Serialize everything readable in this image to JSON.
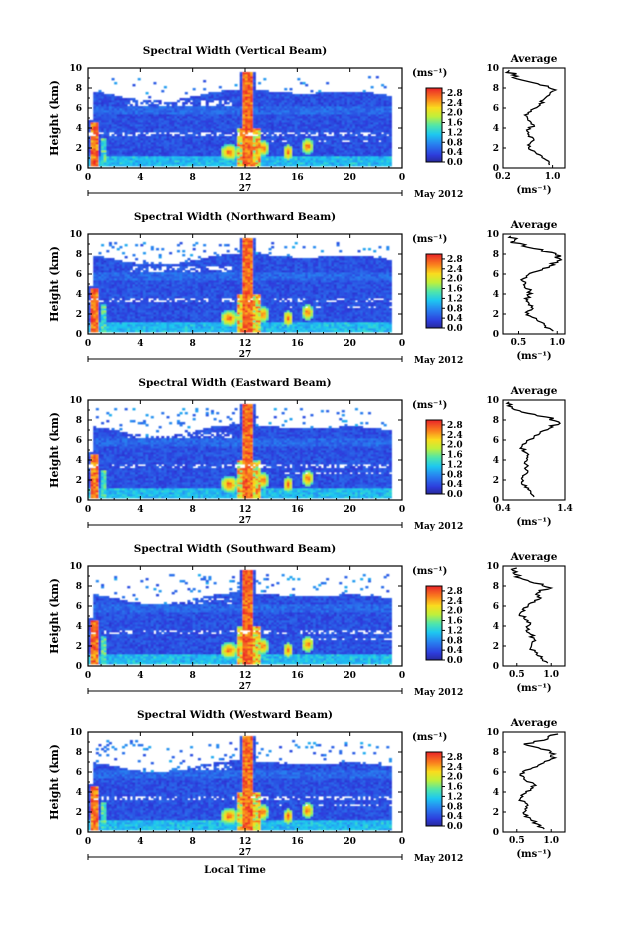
{
  "chart_data": [
    {
      "type": "heatmap",
      "title": "Spectral Width (Vertical Beam)",
      "ylabel": "Height (km)",
      "x_ticks": [
        "0",
        "4",
        "8",
        "12",
        "16",
        "20",
        "0"
      ],
      "y_ticks": [
        "0",
        "2",
        "4",
        "6",
        "8",
        "10"
      ],
      "date_label": "27",
      "month_label": "May 2012",
      "xlim": [
        0,
        24
      ],
      "ylim": [
        0,
        10
      ],
      "colorbar": {
        "unit": "(ms⁻¹)",
        "ticks": [
          "0.0",
          "0.4",
          "0.8",
          "1.2",
          "1.6",
          "2.0",
          "2.4",
          "2.8"
        ],
        "range": [
          0,
          3.0
        ]
      },
      "profile": {
        "title": "Average",
        "xlabel": "(ms⁻¹)",
        "x_ticks": [
          "0.2",
          "1.0"
        ],
        "xlim": [
          0.2,
          1.2
        ],
        "height_km": [
          0.3,
          0.8,
          1.3,
          1.8,
          2.3,
          2.8,
          3.3,
          3.8,
          4.3,
          4.8,
          5.3,
          5.8,
          6.3,
          6.8,
          7.3,
          7.8,
          8.3,
          8.8,
          9.3,
          9.8
        ],
        "values": [
          0.95,
          0.9,
          0.8,
          0.65,
          0.6,
          0.7,
          0.62,
          0.58,
          0.7,
          0.6,
          0.55,
          0.65,
          0.8,
          0.85,
          0.95,
          1.05,
          0.8,
          0.5,
          0.35,
          0.3
        ]
      }
    },
    {
      "type": "heatmap",
      "title": "Spectral Width (Northward Beam)",
      "ylabel": "Height (km)",
      "x_ticks": [
        "0",
        "4",
        "8",
        "12",
        "16",
        "20",
        "0"
      ],
      "y_ticks": [
        "0",
        "2",
        "4",
        "6",
        "8",
        "10"
      ],
      "date_label": "27",
      "month_label": "May 2012",
      "xlim": [
        0,
        24
      ],
      "ylim": [
        0,
        10
      ],
      "colorbar": {
        "unit": "(ms⁻¹)",
        "ticks": [
          "0.0",
          "0.4",
          "0.8",
          "1.2",
          "1.6",
          "2.0",
          "2.4",
          "2.8"
        ],
        "range": [
          0,
          3.0
        ]
      },
      "profile": {
        "title": "Average",
        "xlabel": "(ms⁻¹)",
        "x_ticks": [
          "0.5",
          "1.0"
        ],
        "xlim": [
          0.3,
          1.1
        ],
        "height_km": [
          0.3,
          0.8,
          1.3,
          1.8,
          2.3,
          2.8,
          3.3,
          3.8,
          4.3,
          4.8,
          5.3,
          5.8,
          6.3,
          6.8,
          7.3,
          7.8,
          8.3,
          8.8,
          9.3,
          9.8
        ],
        "values": [
          0.95,
          0.85,
          0.75,
          0.65,
          0.62,
          0.68,
          0.6,
          0.62,
          0.65,
          0.58,
          0.55,
          0.6,
          0.75,
          0.9,
          1.0,
          1.05,
          0.8,
          0.55,
          0.45,
          0.4
        ]
      }
    },
    {
      "type": "heatmap",
      "title": "Spectral Width (Eastward Beam)",
      "ylabel": "Height (km)",
      "x_ticks": [
        "0",
        "4",
        "8",
        "12",
        "16",
        "20",
        "0"
      ],
      "y_ticks": [
        "0",
        "2",
        "4",
        "6",
        "8",
        "10"
      ],
      "date_label": "27",
      "month_label": "May 2012",
      "xlim": [
        0,
        24
      ],
      "ylim": [
        0,
        10
      ],
      "colorbar": {
        "unit": "(ms⁻¹)",
        "ticks": [
          "0.0",
          "0.4",
          "0.8",
          "1.2",
          "1.6",
          "2.0",
          "2.4",
          "2.8"
        ],
        "range": [
          0,
          3.0
        ]
      },
      "profile": {
        "title": "Average",
        "xlabel": "(ms⁻¹)",
        "x_ticks": [
          "0.4",
          "1.4"
        ],
        "xlim": [
          0.4,
          1.4
        ],
        "height_km": [
          0.3,
          0.8,
          1.3,
          1.8,
          2.3,
          2.8,
          3.3,
          3.8,
          4.3,
          4.8,
          5.3,
          5.8,
          6.3,
          6.8,
          7.3,
          7.8,
          8.3,
          8.8,
          9.3,
          9.8
        ],
        "values": [
          0.9,
          0.85,
          0.75,
          0.7,
          0.72,
          0.8,
          0.78,
          0.75,
          0.8,
          0.75,
          0.7,
          0.78,
          0.9,
          1.0,
          1.2,
          1.3,
          1.1,
          0.7,
          0.55,
          0.5
        ]
      }
    },
    {
      "type": "heatmap",
      "title": "Spectral Width (Southward Beam)",
      "ylabel": "Height (km)",
      "x_ticks": [
        "0",
        "4",
        "8",
        "12",
        "16",
        "20",
        "0"
      ],
      "y_ticks": [
        "0",
        "2",
        "4",
        "6",
        "8",
        "10"
      ],
      "date_label": "27",
      "month_label": "May 2012",
      "xlim": [
        0,
        24
      ],
      "ylim": [
        0,
        10
      ],
      "colorbar": {
        "unit": "(ms⁻¹)",
        "ticks": [
          "0.0",
          "0.4",
          "0.8",
          "1.2",
          "1.6",
          "2.0",
          "2.4",
          "2.8"
        ],
        "range": [
          0,
          3.0
        ]
      },
      "profile": {
        "title": "Average",
        "xlabel": "(ms⁻¹)",
        "x_ticks": [
          "0.5",
          "1.0"
        ],
        "xlim": [
          0.3,
          1.2
        ],
        "height_km": [
          0.3,
          0.8,
          1.3,
          1.8,
          2.3,
          2.8,
          3.3,
          3.8,
          4.3,
          4.8,
          5.3,
          5.8,
          6.3,
          6.8,
          7.3,
          7.8,
          8.3,
          8.8,
          9.3,
          9.8
        ],
        "values": [
          0.95,
          0.85,
          0.8,
          0.7,
          0.72,
          0.75,
          0.68,
          0.65,
          0.7,
          0.6,
          0.55,
          0.6,
          0.7,
          0.85,
          0.8,
          1.0,
          0.75,
          0.55,
          0.45,
          0.5
        ]
      }
    },
    {
      "type": "heatmap",
      "title": "Spectral Width (Westward Beam)",
      "ylabel": "Height (km)",
      "xlabel": "Local Time",
      "x_ticks": [
        "0",
        "4",
        "8",
        "12",
        "16",
        "20",
        "0"
      ],
      "y_ticks": [
        "0",
        "2",
        "4",
        "6",
        "8",
        "10"
      ],
      "date_label": "27",
      "month_label": "May 2012",
      "xlim": [
        0,
        24
      ],
      "ylim": [
        0,
        10
      ],
      "colorbar": {
        "unit": "(ms⁻¹)",
        "ticks": [
          "0.0",
          "0.4",
          "0.8",
          "1.2",
          "1.6",
          "2.0",
          "2.4",
          "2.8"
        ],
        "range": [
          0,
          3.0
        ]
      },
      "profile": {
        "title": "Average",
        "xlabel": "(ms⁻¹)",
        "x_ticks": [
          "0.5",
          "1.0"
        ],
        "xlim": [
          0.3,
          1.2
        ],
        "height_km": [
          0.3,
          0.8,
          1.3,
          1.8,
          2.3,
          2.8,
          3.3,
          3.8,
          4.3,
          4.8,
          5.3,
          5.8,
          6.3,
          6.8,
          7.3,
          7.8,
          8.3,
          8.8,
          9.3,
          9.8
        ],
        "values": [
          0.9,
          0.8,
          0.7,
          0.6,
          0.62,
          0.65,
          0.55,
          0.6,
          0.7,
          0.75,
          0.6,
          0.55,
          0.7,
          0.85,
          1.0,
          1.05,
          0.85,
          0.6,
          0.95,
          1.1
        ]
      }
    }
  ]
}
